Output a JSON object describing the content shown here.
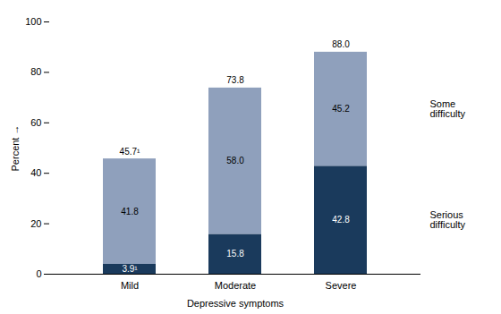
{
  "chart_data": {
    "type": "bar",
    "stacked": true,
    "data_labels": true,
    "grid": false,
    "xlabel": "Depressive symptoms",
    "ylabel": "Percent",
    "categories": [
      "Mild",
      "Moderate",
      "Severe"
    ],
    "series": [
      {
        "name": "Serious\ndifficulty",
        "color": "#1a3a5c",
        "values": [
          3.9,
          15.8,
          42.8
        ],
        "value_labels": [
          "3.9¹",
          "15.8",
          "42.8"
        ]
      },
      {
        "name": "Some\ndifficulty",
        "color": "#8fa0bc",
        "values": [
          41.8,
          58.0,
          45.2
        ],
        "value_labels": [
          "41.8",
          "58.0",
          "45.2"
        ]
      }
    ],
    "totals": [
      45.7,
      73.8,
      88.0
    ],
    "total_labels": [
      "45.7¹",
      "73.8",
      "88.0"
    ],
    "ylim": [
      0,
      100
    ],
    "yticks": [
      0,
      20,
      40,
      60,
      80,
      100
    ]
  }
}
